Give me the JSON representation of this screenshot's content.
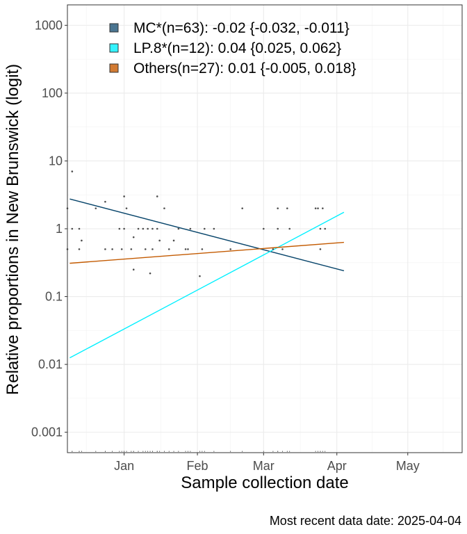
{
  "chart_data": {
    "type": "scatter",
    "xlabel": "Sample collection date",
    "ylabel": "Relative proportions in New Brunswick (logit)",
    "caption": "Most recent data date: 2025-04-04",
    "y_scale": "log",
    "ylim": [
      0.0005,
      2000
    ],
    "xlim": [
      "2024-12-08",
      "2025-05-24"
    ],
    "x_ticks": [
      {
        "date": "2025-01-01",
        "label": "Jan"
      },
      {
        "date": "2025-02-01",
        "label": "Feb"
      },
      {
        "date": "2025-03-01",
        "label": "Mar"
      },
      {
        "date": "2025-04-01",
        "label": "Apr"
      },
      {
        "date": "2025-05-01",
        "label": "May"
      }
    ],
    "y_ticks": [
      {
        "value": 0.001,
        "label": "0.001"
      },
      {
        "value": 0.01,
        "label": "0.01"
      },
      {
        "value": 0.1,
        "label": "0.1"
      },
      {
        "value": 1,
        "label": "1"
      },
      {
        "value": 10,
        "label": "10"
      },
      {
        "value": 100,
        "label": "100"
      },
      {
        "value": 1000,
        "label": "1000"
      }
    ],
    "grid": true,
    "legend_position": "top-left",
    "series": [
      {
        "name": "MC*(n=63): -0.02 {-0.032, -0.011}",
        "color": "#08456b",
        "legend_fill": "#4a7591",
        "fit": [
          {
            "x": "2024-12-09",
            "y": 2.75
          },
          {
            "x": "2025-04-04",
            "y": 0.24
          }
        ]
      },
      {
        "name": "LP.8*(n=12): 0.04 {0.025, 0.062}",
        "color": "#00f0ff",
        "legend_fill": "#33f3ff",
        "fit": [
          {
            "x": "2024-12-09",
            "y": 0.0125
          },
          {
            "x": "2025-04-04",
            "y": 1.75
          }
        ]
      },
      {
        "name": "Others(n=27): 0.01 {-0.005, 0.018}",
        "color": "#c35a00",
        "legend_fill": "#d27b33",
        "fit": [
          {
            "x": "2024-12-09",
            "y": 0.31
          },
          {
            "x": "2025-04-04",
            "y": 0.63
          }
        ]
      }
    ],
    "points": [
      {
        "x": "2024-12-08",
        "y": 2.0
      },
      {
        "x": "2024-12-08",
        "y": 0.5
      },
      {
        "x": "2024-12-10",
        "y": 7.0
      },
      {
        "x": "2024-12-10",
        "y": 1.0
      },
      {
        "x": "2024-12-13",
        "y": 1.0
      },
      {
        "x": "2024-12-13",
        "y": 0.5
      },
      {
        "x": "2024-12-14",
        "y": 0.67
      },
      {
        "x": "2024-12-20",
        "y": 2.0
      },
      {
        "x": "2024-12-24",
        "y": 2.5
      },
      {
        "x": "2024-12-24",
        "y": 0.5
      },
      {
        "x": "2024-12-27",
        "y": 0.5
      },
      {
        "x": "2024-12-30",
        "y": 1.0
      },
      {
        "x": "2024-12-31",
        "y": 0.5
      },
      {
        "x": "2025-01-01",
        "y": 1.0
      },
      {
        "x": "2025-01-01",
        "y": 3.0
      },
      {
        "x": "2025-01-02",
        "y": 2.0
      },
      {
        "x": "2025-01-04",
        "y": 0.5
      },
      {
        "x": "2025-01-05",
        "y": 0.25
      },
      {
        "x": "2025-01-05",
        "y": 0.75
      },
      {
        "x": "2025-01-07",
        "y": 1.0
      },
      {
        "x": "2025-01-09",
        "y": 1.0
      },
      {
        "x": "2025-01-10",
        "y": 0.5
      },
      {
        "x": "2025-01-11",
        "y": 1.0
      },
      {
        "x": "2025-01-12",
        "y": 0.22
      },
      {
        "x": "2025-01-13",
        "y": 1.0
      },
      {
        "x": "2025-01-13",
        "y": 0.5
      },
      {
        "x": "2025-01-15",
        "y": 3.0
      },
      {
        "x": "2025-01-15",
        "y": 1.0
      },
      {
        "x": "2025-01-16",
        "y": 0.67
      },
      {
        "x": "2025-01-18",
        "y": 2.0
      },
      {
        "x": "2025-01-20",
        "y": 0.5
      },
      {
        "x": "2025-01-22",
        "y": 0.67
      },
      {
        "x": "2025-01-24",
        "y": 1.0
      },
      {
        "x": "2025-01-27",
        "y": 0.5
      },
      {
        "x": "2025-01-28",
        "y": 0.5
      },
      {
        "x": "2025-01-29",
        "y": 1.0
      },
      {
        "x": "2025-02-02",
        "y": 0.2
      },
      {
        "x": "2025-02-03",
        "y": 0.5
      },
      {
        "x": "2025-02-04",
        "y": 1.0
      },
      {
        "x": "2025-02-08",
        "y": 1.0
      },
      {
        "x": "2025-02-15",
        "y": 0.5
      },
      {
        "x": "2025-02-20",
        "y": 2.0
      },
      {
        "x": "2025-03-01",
        "y": 1.0
      },
      {
        "x": "2025-03-05",
        "y": 0.5
      },
      {
        "x": "2025-03-07",
        "y": 2.0
      },
      {
        "x": "2025-03-07",
        "y": 1.0
      },
      {
        "x": "2025-03-09",
        "y": 0.5
      },
      {
        "x": "2025-03-11",
        "y": 2.0
      },
      {
        "x": "2025-03-12",
        "y": 1.0
      },
      {
        "x": "2025-03-23",
        "y": 2.0
      },
      {
        "x": "2025-03-24",
        "y": 2.0
      },
      {
        "x": "2025-03-25",
        "y": 1.0
      },
      {
        "x": "2025-03-25",
        "y": 0.5
      },
      {
        "x": "2025-03-26",
        "y": 2.0
      },
      {
        "x": "2025-03-27",
        "y": 1.0
      }
    ]
  }
}
